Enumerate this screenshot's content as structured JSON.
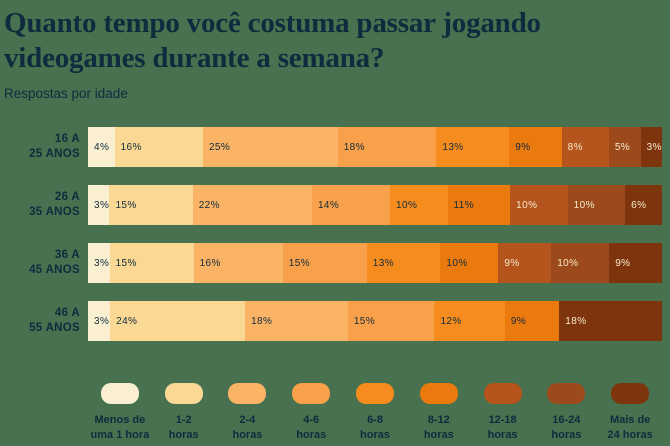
{
  "page": {
    "background_color": "#487150",
    "text_color": "#0F2B3D",
    "light_value_color": "#F6EBCB"
  },
  "chart_data": {
    "type": "bar",
    "variant": "horizontal-stacked",
    "title": "Quanto tempo você costuma passar jogando videogames durante a semana?",
    "subtitle": "Respostas por idade",
    "unit": "%",
    "legend_position": "bottom",
    "grid": false,
    "categories": [
      "16 a 25 anos",
      "26 a 35 anos",
      "36 a 45 anos",
      "46 a 55 anos"
    ],
    "category_lines": [
      [
        "16 A",
        "25 ANOS"
      ],
      [
        "26 A",
        "35 ANOS"
      ],
      [
        "36 A",
        "45 ANOS"
      ],
      [
        "46 A",
        "55 ANOS"
      ]
    ],
    "series": [
      {
        "name": "Menos de uma 1 hora",
        "legend_lines": [
          "Menos de",
          "uma 1 hora"
        ],
        "color": "#FAF0D1",
        "values": [
          4,
          3,
          3,
          3
        ]
      },
      {
        "name": "1-2 horas",
        "legend_lines": [
          "1-2",
          "horas"
        ],
        "color": "#FBD893",
        "values": [
          16,
          15,
          15,
          24
        ]
      },
      {
        "name": "2-4 horas",
        "legend_lines": [
          "2-4",
          "horas"
        ],
        "color": "#FBB466",
        "values": [
          25,
          22,
          16,
          18
        ]
      },
      {
        "name": "4-6 horas",
        "legend_lines": [
          "4-6",
          "horas"
        ],
        "color": "#F9A04A",
        "values": [
          18,
          14,
          15,
          15
        ]
      },
      {
        "name": "6-8 horas",
        "legend_lines": [
          "6-8",
          "horas"
        ],
        "color": "#F78C1E",
        "values": [
          13,
          10,
          13,
          12
        ]
      },
      {
        "name": "8-12 horas",
        "legend_lines": [
          "8-12",
          "horas"
        ],
        "color": "#EA7A0D",
        "values": [
          9,
          11,
          10,
          9
        ]
      },
      {
        "name": "12-18 horas",
        "legend_lines": [
          "12-18",
          "horas"
        ],
        "color": "#B5541D",
        "values": [
          8,
          10,
          9,
          0
        ]
      },
      {
        "name": "16-24 horas",
        "legend_lines": [
          "16-24",
          "horas"
        ],
        "color": "#9C4A1C",
        "values": [
          5,
          10,
          10,
          0
        ]
      },
      {
        "name": "Mais de 24 horas",
        "legend_lines": [
          "Mais de",
          "24 horas"
        ],
        "color": "#7E350D",
        "values": [
          3,
          6,
          9,
          18
        ]
      }
    ],
    "light_text_from_series_index": 6,
    "value_label_format": "{v}%"
  }
}
